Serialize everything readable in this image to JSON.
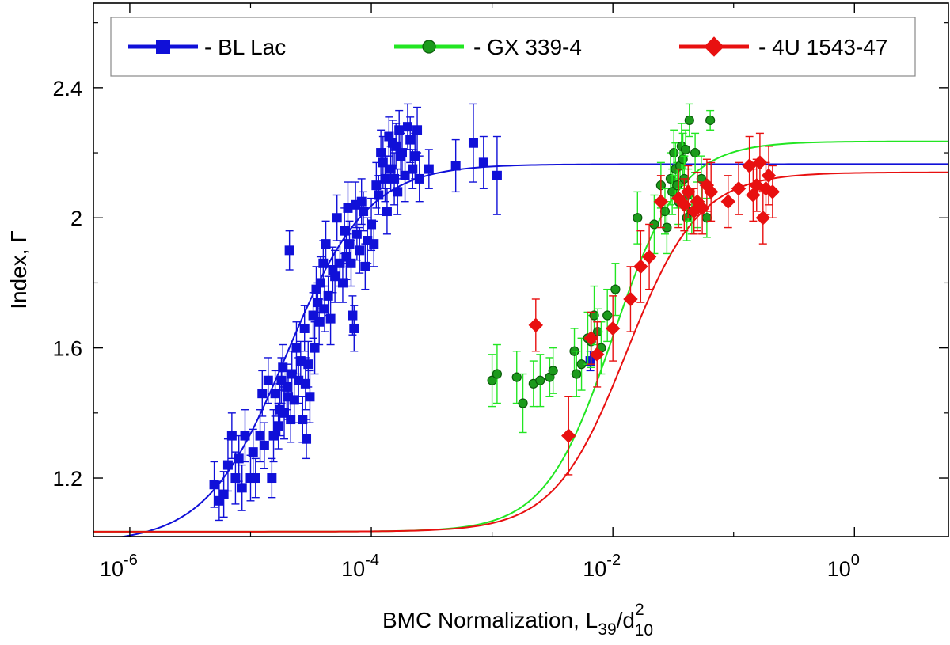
{
  "chart_data": {
    "type": "scatter",
    "title": "",
    "xlabel": "BMC Normalization, L",
    "xlabel_sub1": "39",
    "xlabel_mid": "/d",
    "xlabel_sup": "2",
    "xlabel_sub2": "10",
    "ylabel": "Index, Γ",
    "x_scale": "log",
    "xlim": [
      5e-07,
      6
    ],
    "ylim": [
      1.02,
      2.66
    ],
    "x_ticks": [
      {
        "value": 1e-06,
        "base": "10",
        "exp": "-6"
      },
      {
        "value": 0.0001,
        "base": "10",
        "exp": "-4"
      },
      {
        "value": 0.01,
        "base": "10",
        "exp": "-2"
      },
      {
        "value": 1,
        "base": "10",
        "exp": "0"
      }
    ],
    "y_ticks": [
      {
        "value": 1.2,
        "label": "1.2"
      },
      {
        "value": 1.6,
        "label": "1.6"
      },
      {
        "value": 2.0,
        "label": "2"
      },
      {
        "value": 2.4,
        "label": "2.4"
      }
    ],
    "y_minor_ticks": [
      1.4,
      1.8,
      2.2,
      2.6
    ],
    "grid": false,
    "legend_position": "top",
    "series": [
      {
        "name": "BL Lac",
        "legend_label": "-  BL Lac",
        "color": "#1010d8",
        "marker": "square",
        "fit": {
          "low": 1.0,
          "high": 2.165,
          "x0": 2e-05,
          "slope": 1.3
        },
        "points": [
          [
            5e-06,
            1.18,
            0.07
          ],
          [
            5.5e-06,
            1.13,
            0.06
          ],
          [
            6e-06,
            1.15,
            0.07
          ],
          [
            6.5e-06,
            1.24,
            0.08
          ],
          [
            7e-06,
            1.33,
            0.07
          ],
          [
            7.5e-06,
            1.2,
            0.08
          ],
          [
            8e-06,
            1.26,
            0.07
          ],
          [
            8.5e-06,
            1.17,
            0.07
          ],
          [
            9e-06,
            1.33,
            0.08
          ],
          [
            1e-05,
            1.2,
            0.07
          ],
          [
            1.05e-05,
            1.28,
            0.07
          ],
          [
            1.1e-05,
            1.2,
            0.06
          ],
          [
            1.2e-05,
            1.33,
            0.08
          ],
          [
            1.25e-05,
            1.46,
            0.07
          ],
          [
            1.3e-05,
            1.3,
            0.07
          ],
          [
            1.4e-05,
            1.5,
            0.07
          ],
          [
            1.5e-05,
            1.2,
            0.06
          ],
          [
            1.55e-05,
            1.33,
            0.08
          ],
          [
            1.6e-05,
            1.46,
            0.07
          ],
          [
            1.7e-05,
            1.36,
            0.07
          ],
          [
            1.75e-05,
            1.41,
            0.08
          ],
          [
            1.8e-05,
            1.5,
            0.07
          ],
          [
            1.85e-05,
            1.54,
            0.07
          ],
          [
            1.9e-05,
            1.4,
            0.08
          ],
          [
            2e-05,
            1.48,
            0.07
          ],
          [
            2.05e-05,
            1.45,
            0.07
          ],
          [
            2.1e-05,
            1.9,
            0.06
          ],
          [
            2.15e-05,
            1.38,
            0.07
          ],
          [
            2.2e-05,
            1.52,
            0.07
          ],
          [
            2.3e-05,
            1.44,
            0.07
          ],
          [
            2.4e-05,
            1.6,
            0.08
          ],
          [
            2.5e-05,
            1.5,
            0.07
          ],
          [
            2.6e-05,
            1.56,
            0.06
          ],
          [
            2.7e-05,
            1.38,
            0.07
          ],
          [
            2.8e-05,
            1.66,
            0.07
          ],
          [
            2.85e-05,
            1.49,
            0.08
          ],
          [
            2.9e-05,
            1.32,
            0.06
          ],
          [
            3e-05,
            1.55,
            0.07
          ],
          [
            3.1e-05,
            1.45,
            0.08
          ],
          [
            3.3e-05,
            1.7,
            0.07
          ],
          [
            3.4e-05,
            1.6,
            0.08
          ],
          [
            3.5e-05,
            1.78,
            0.07
          ],
          [
            3.6e-05,
            1.74,
            0.06
          ],
          [
            3.7e-05,
            1.68,
            0.07
          ],
          [
            3.8e-05,
            1.8,
            0.08
          ],
          [
            4e-05,
            1.86,
            0.07
          ],
          [
            4.1e-05,
            1.72,
            0.07
          ],
          [
            4.2e-05,
            1.92,
            0.07
          ],
          [
            4.4e-05,
            1.76,
            0.06
          ],
          [
            4.6e-05,
            1.69,
            0.08
          ],
          [
            4.8e-05,
            1.84,
            0.07
          ],
          [
            5e-05,
            1.82,
            0.08
          ],
          [
            5.2e-05,
            2.0,
            0.07
          ],
          [
            5.5e-05,
            1.86,
            0.07
          ],
          [
            5.8e-05,
            1.8,
            0.06
          ],
          [
            6e-05,
            1.96,
            0.07
          ],
          [
            6.2e-05,
            1.88,
            0.07
          ],
          [
            6.4e-05,
            2.03,
            0.08
          ],
          [
            6.6e-05,
            1.92,
            0.07
          ],
          [
            6.8e-05,
            1.86,
            0.07
          ],
          [
            7e-05,
            1.7,
            0.06
          ],
          [
            7.2e-05,
            1.66,
            0.07
          ],
          [
            7.4e-05,
            2.04,
            0.07
          ],
          [
            7.6e-05,
            1.95,
            0.08
          ],
          [
            8e-05,
            1.9,
            0.07
          ],
          [
            8.3e-05,
            2.05,
            0.07
          ],
          [
            8.6e-05,
            2.02,
            0.06
          ],
          [
            8.9e-05,
            1.85,
            0.07
          ],
          [
            9.3e-05,
            1.93,
            0.07
          ],
          [
            0.0001,
            1.98,
            0.08
          ],
          [
            0.000105,
            1.92,
            0.07
          ],
          [
            0.00011,
            2.1,
            0.07
          ],
          [
            0.000115,
            2.07,
            0.06
          ],
          [
            0.00012,
            2.2,
            0.07
          ],
          [
            0.000125,
            2.17,
            0.08
          ],
          [
            0.00013,
            2.12,
            0.07
          ],
          [
            0.000135,
            2.02,
            0.07
          ],
          [
            0.00014,
            2.25,
            0.06
          ],
          [
            0.000145,
            2.15,
            0.07
          ],
          [
            0.00015,
            2.23,
            0.07
          ],
          [
            0.000155,
            2.12,
            0.08
          ],
          [
            0.00016,
            2.22,
            0.07
          ],
          [
            0.000165,
            2.08,
            0.07
          ],
          [
            0.00017,
            2.27,
            0.06
          ],
          [
            0.000175,
            2.19,
            0.07
          ],
          [
            0.00018,
            2.2,
            0.07
          ],
          [
            0.00019,
            2.13,
            0.08
          ],
          [
            0.0002,
            2.28,
            0.07
          ],
          [
            0.00021,
            2.24,
            0.07
          ],
          [
            0.00022,
            2.15,
            0.06
          ],
          [
            0.00023,
            2.19,
            0.07
          ],
          [
            0.00024,
            2.27,
            0.07
          ],
          [
            0.00025,
            2.12,
            0.07
          ],
          [
            0.0003,
            2.15,
            0.06
          ],
          [
            0.0005,
            2.16,
            0.08
          ],
          [
            0.0007,
            2.23,
            0.12
          ],
          [
            0.00085,
            2.17,
            0.08
          ],
          [
            0.0011,
            2.13,
            0.12
          ],
          [
            0.0065,
            1.56,
            0.03
          ]
        ]
      },
      {
        "name": "GX 339-4",
        "legend_label": "-  GX 339-4",
        "color": "#22e622",
        "marker": "circle",
        "fit": {
          "low": 1.035,
          "high": 2.235,
          "x0": 0.01,
          "slope": 1.55
        },
        "points": [
          [
            0.001,
            1.5,
            0.08
          ],
          [
            0.0011,
            1.52,
            0.09
          ],
          [
            0.0016,
            1.51,
            0.08
          ],
          [
            0.0018,
            1.43,
            0.09
          ],
          [
            0.0022,
            1.49,
            0.07
          ],
          [
            0.0025,
            1.5,
            0.08
          ],
          [
            0.003,
            1.51,
            0.06
          ],
          [
            0.0032,
            1.53,
            0.07
          ],
          [
            0.0048,
            1.59,
            0.07
          ],
          [
            0.005,
            1.52,
            0.07
          ],
          [
            0.0055,
            1.55,
            0.08
          ],
          [
            0.0062,
            1.63,
            0.08
          ],
          [
            0.0066,
            1.62,
            0.08
          ],
          [
            0.007,
            1.7,
            0.09
          ],
          [
            0.0075,
            1.65,
            0.07
          ],
          [
            0.008,
            1.6,
            0.08
          ],
          [
            0.009,
            1.7,
            0.08
          ],
          [
            0.0105,
            1.78,
            0.08
          ],
          [
            0.016,
            2.0,
            0.08
          ],
          [
            0.022,
            1.98,
            0.09
          ],
          [
            0.025,
            2.1,
            0.07
          ],
          [
            0.027,
            2.02,
            0.07
          ],
          [
            0.028,
            1.97,
            0.08
          ],
          [
            0.03,
            2.12,
            0.08
          ],
          [
            0.031,
            2.08,
            0.07
          ],
          [
            0.032,
            2.2,
            0.07
          ],
          [
            0.033,
            2.15,
            0.08
          ],
          [
            0.034,
            2.1,
            0.07
          ],
          [
            0.035,
            2.05,
            0.07
          ],
          [
            0.036,
            2.16,
            0.07
          ],
          [
            0.037,
            2.22,
            0.07
          ],
          [
            0.038,
            2.18,
            0.08
          ],
          [
            0.039,
            2.12,
            0.07
          ],
          [
            0.04,
            2.21,
            0.06
          ],
          [
            0.041,
            2.0,
            0.07
          ],
          [
            0.042,
            2.07,
            0.08
          ],
          [
            0.043,
            2.3,
            0.05
          ],
          [
            0.045,
            2.02,
            0.07
          ],
          [
            0.048,
            2.2,
            0.06
          ],
          [
            0.05,
            2.04,
            0.07
          ],
          [
            0.054,
            2.12,
            0.07
          ],
          [
            0.06,
            2.0,
            0.06
          ],
          [
            0.064,
            2.3,
            0.03
          ]
        ]
      },
      {
        "name": "4U 1543-47",
        "legend_label": "- 4U 1543-47",
        "color": "#e81010",
        "marker": "diamond",
        "fit": {
          "low": 1.035,
          "high": 2.14,
          "x0": 0.013,
          "slope": 1.45
        },
        "points": [
          [
            0.0023,
            1.67,
            0.08
          ],
          [
            0.0043,
            1.33,
            0.12
          ],
          [
            0.0066,
            1.63,
            0.08
          ],
          [
            0.0074,
            1.58,
            0.1
          ],
          [
            0.01,
            1.66,
            0.1
          ],
          [
            0.014,
            1.75,
            0.1
          ],
          [
            0.017,
            1.85,
            0.11
          ],
          [
            0.02,
            1.88,
            0.1
          ],
          [
            0.025,
            2.05,
            0.08
          ],
          [
            0.035,
            2.06,
            0.09
          ],
          [
            0.039,
            2.04,
            0.08
          ],
          [
            0.042,
            2.08,
            0.08
          ],
          [
            0.047,
            2.02,
            0.07
          ],
          [
            0.05,
            2.05,
            0.09
          ],
          [
            0.055,
            2.03,
            0.08
          ],
          [
            0.06,
            2.1,
            0.08
          ],
          [
            0.065,
            2.08,
            0.09
          ],
          [
            0.09,
            2.05,
            0.08
          ],
          [
            0.11,
            2.09,
            0.08
          ],
          [
            0.135,
            2.16,
            0.09
          ],
          [
            0.145,
            2.07,
            0.08
          ],
          [
            0.155,
            2.1,
            0.08
          ],
          [
            0.165,
            2.17,
            0.09
          ],
          [
            0.175,
            2.0,
            0.08
          ],
          [
            0.185,
            2.09,
            0.08
          ],
          [
            0.195,
            2.13,
            0.09
          ],
          [
            0.21,
            2.08,
            0.08
          ]
        ]
      }
    ]
  }
}
